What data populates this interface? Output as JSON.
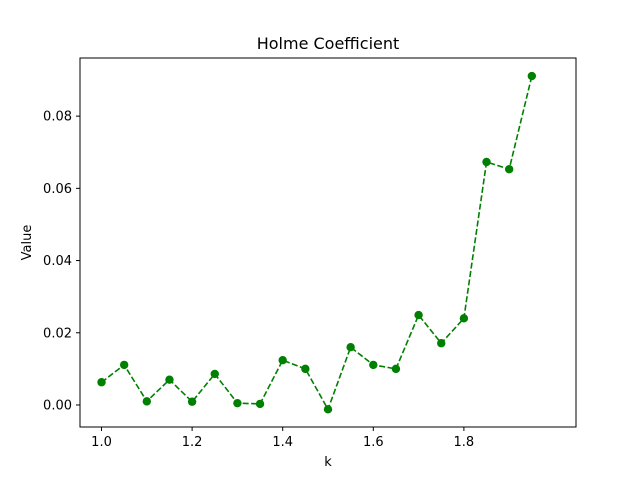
{
  "chart_data": {
    "type": "line",
    "title": "Holme Coefficient",
    "xlabel": "k",
    "ylabel": "Value",
    "xlim": [
      0.9525,
      2.0475
    ],
    "ylim": [
      -0.0061,
      0.0961
    ],
    "xticks": [
      1.0,
      1.2,
      1.4,
      1.6,
      1.8
    ],
    "xtick_labels": [
      "1.0",
      "1.2",
      "1.4",
      "1.6",
      "1.8"
    ],
    "yticks": [
      0.0,
      0.02,
      0.04,
      0.06,
      0.08
    ],
    "ytick_labels": [
      "0.00",
      "0.02",
      "0.04",
      "0.06",
      "0.08"
    ],
    "grid": false,
    "legend": "none",
    "series": [
      {
        "color": "#008000",
        "line_style": "dashed",
        "marker": "circle",
        "x": [
          1.0,
          1.05,
          1.1,
          1.15,
          1.2,
          1.25,
          1.3,
          1.35,
          1.4,
          1.45,
          1.5,
          1.55,
          1.6,
          1.65,
          1.7,
          1.75,
          1.8,
          1.85,
          1.9,
          1.95
        ],
        "y": [
          0.0063,
          0.0111,
          0.001,
          0.007,
          0.0009,
          0.0086,
          0.0005,
          0.0003,
          0.0124,
          0.01,
          -0.0012,
          0.016,
          0.0111,
          0.01,
          0.0249,
          0.0171,
          0.024,
          0.0673,
          0.0653,
          0.0911
        ]
      }
    ]
  }
}
